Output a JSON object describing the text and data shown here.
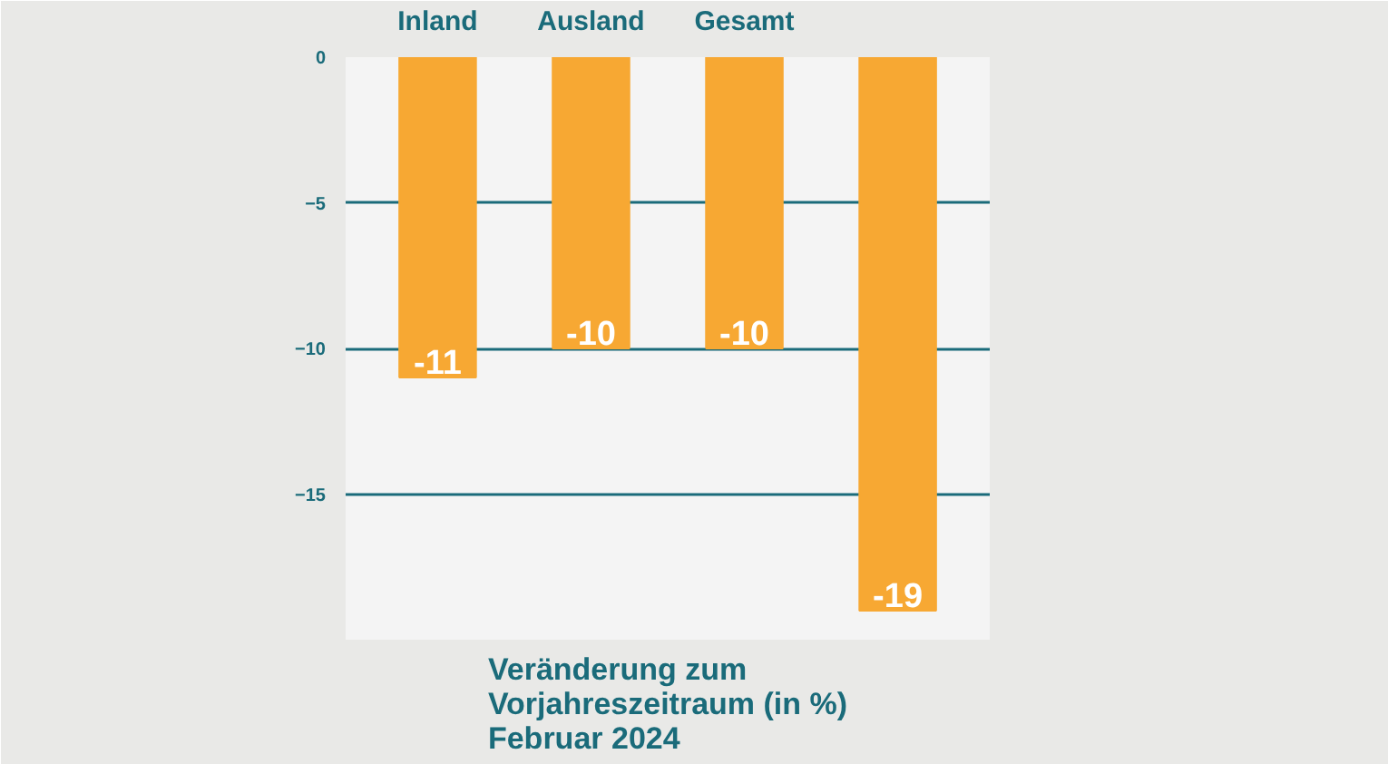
{
  "chart_data": {
    "type": "bar",
    "title": "Veränderung zum\nVorjahreszeitraum (in %)\nFebruar 2024",
    "categories": [
      "Inland",
      "Ausland",
      "Gesamt",
      null
    ],
    "values": [
      -11,
      -10,
      -10,
      -19
    ],
    "data_labels": true,
    "color": "#f7a833",
    "ylim": [
      -20,
      0
    ],
    "yticks": [
      0,
      -5,
      -10,
      -15
    ],
    "grid": "y"
  }
}
